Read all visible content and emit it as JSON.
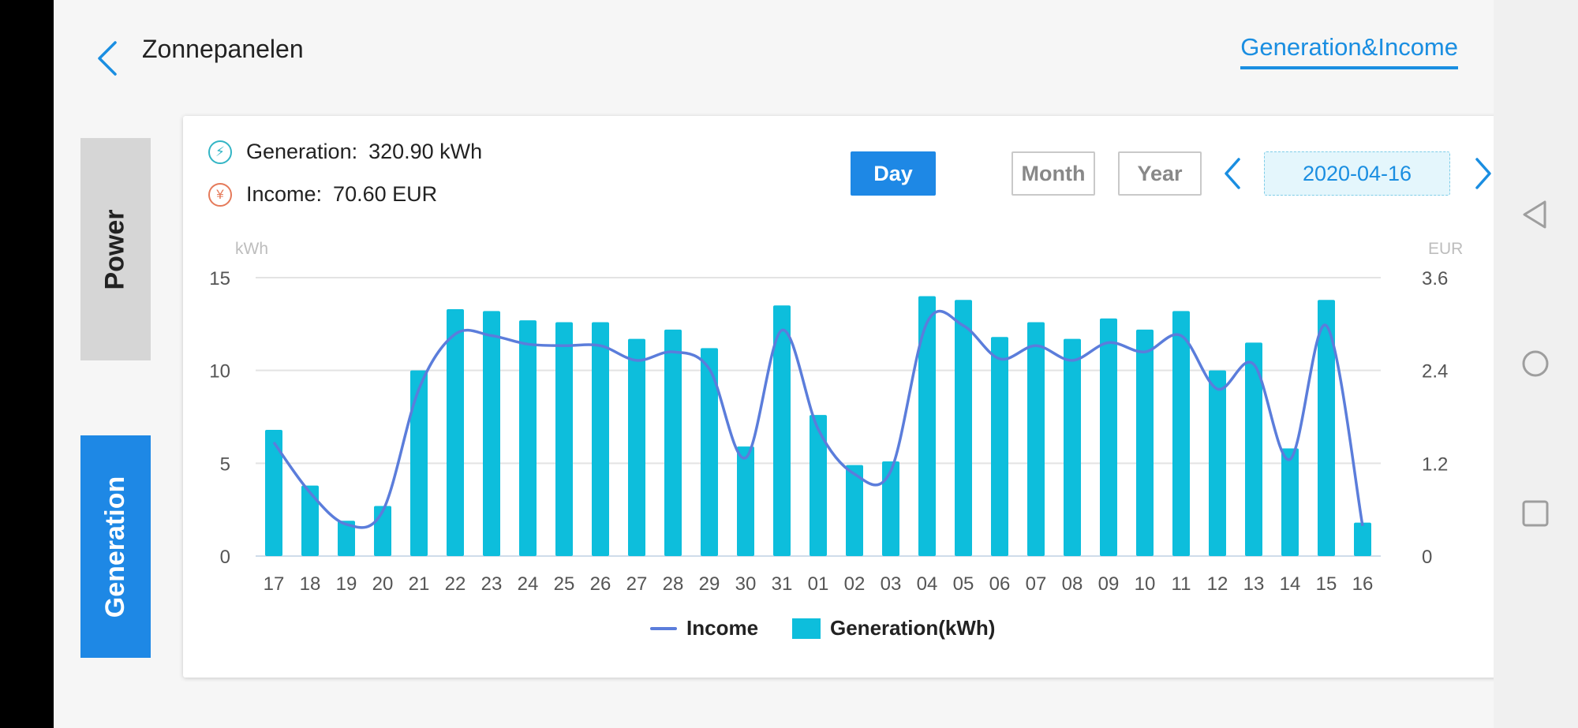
{
  "header": {
    "title": "Zonnepanelen",
    "tab": "Generation&Income"
  },
  "side_tabs": {
    "power": "Power",
    "generation": "Generation"
  },
  "stats": {
    "generation_label": "Generation:",
    "generation_value": "320.90 kWh",
    "income_label": "Income:",
    "income_value": "70.60 EUR"
  },
  "controls": {
    "day": "Day",
    "month": "Month",
    "year": "Year",
    "date": "2020-04-16"
  },
  "colors": {
    "accent": "#1e88e5",
    "bar": "#0dbedc",
    "line": "#5b7ddb"
  },
  "chart_data": {
    "type": "bar",
    "categories": [
      "17",
      "18",
      "19",
      "20",
      "21",
      "22",
      "23",
      "24",
      "25",
      "26",
      "27",
      "28",
      "29",
      "30",
      "31",
      "01",
      "02",
      "03",
      "04",
      "05",
      "06",
      "07",
      "08",
      "09",
      "10",
      "11",
      "12",
      "13",
      "14",
      "15",
      "16"
    ],
    "left_axis": {
      "unit": "kWh",
      "ticks": [
        "0",
        "5",
        "10",
        "15"
      ],
      "range": [
        0,
        15
      ]
    },
    "right_axis": {
      "unit": "EUR",
      "ticks": [
        "0",
        "1.2",
        "2.4",
        "3.6"
      ],
      "range": [
        0,
        3.6
      ]
    },
    "grid": true,
    "series": [
      {
        "name": "Generation(kWh)",
        "type": "bar",
        "axis": "left",
        "values": [
          6.8,
          3.8,
          1.9,
          2.7,
          10.0,
          13.3,
          13.2,
          12.7,
          12.6,
          12.6,
          11.7,
          12.2,
          11.2,
          5.9,
          13.5,
          7.6,
          4.9,
          5.1,
          14.0,
          13.8,
          11.8,
          12.6,
          11.7,
          12.8,
          12.2,
          13.2,
          10.0,
          11.5,
          5.8,
          13.8,
          1.8
        ]
      },
      {
        "name": "Income",
        "type": "line",
        "axis": "right",
        "values": [
          1.47,
          0.82,
          0.41,
          0.58,
          2.16,
          2.87,
          2.85,
          2.74,
          2.72,
          2.72,
          2.53,
          2.64,
          2.42,
          1.27,
          2.92,
          1.64,
          1.06,
          1.1,
          3.02,
          2.98,
          2.55,
          2.72,
          2.53,
          2.76,
          2.64,
          2.85,
          2.16,
          2.48,
          1.25,
          2.98,
          0.39
        ]
      }
    ],
    "legend": [
      "Income",
      "Generation(kWh)"
    ],
    "legend_position": "bottom"
  }
}
